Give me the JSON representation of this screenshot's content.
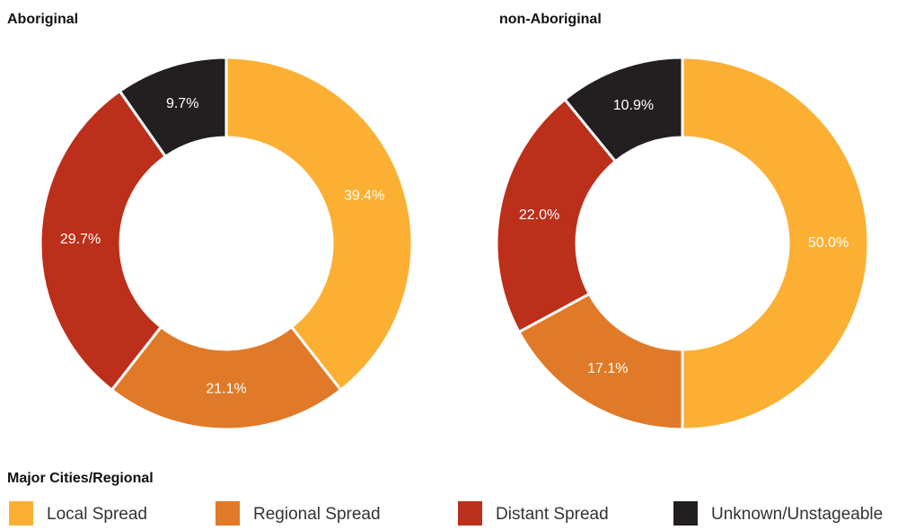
{
  "legend": {
    "title": "Major Cities/Regional",
    "categories": [
      "Local Spread",
      "Regional Spread",
      "Distant Spread",
      "Unknown/Unstageable"
    ],
    "colors": [
      "#fbb034",
      "#e07a28",
      "#bc2f1a",
      "#231f20"
    ]
  },
  "chart_data": [
    {
      "type": "pie",
      "title": "Aboriginal",
      "values": [
        39.4,
        21.1,
        29.7,
        9.7
      ],
      "value_labels": [
        "39.4%",
        "21.1%",
        "29.7%",
        "9.7%"
      ]
    },
    {
      "type": "pie",
      "title": "non-Aboriginal",
      "values": [
        50.0,
        17.1,
        22.0,
        10.9
      ],
      "value_labels": [
        "50.0%",
        "17.1%",
        "22.0%",
        "10.9%"
      ]
    }
  ]
}
